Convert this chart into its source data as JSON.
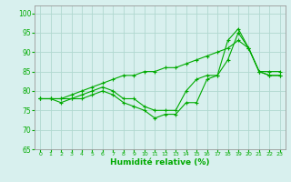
{
  "x": [
    0,
    1,
    2,
    3,
    4,
    5,
    6,
    7,
    8,
    9,
    10,
    11,
    12,
    13,
    14,
    15,
    16,
    17,
    18,
    19,
    20,
    21,
    22,
    23
  ],
  "line1": [
    78,
    78,
    77,
    78,
    78,
    79,
    80,
    79,
    77,
    76,
    75,
    73,
    74,
    74,
    77,
    77,
    83,
    84,
    88,
    95,
    91,
    85,
    84,
    84
  ],
  "line2": [
    78,
    78,
    78,
    78,
    79,
    80,
    81,
    80,
    78,
    78,
    76,
    75,
    75,
    75,
    80,
    83,
    84,
    84,
    93,
    96,
    91,
    85,
    84,
    84
  ],
  "line3": [
    78,
    78,
    78,
    79,
    80,
    81,
    82,
    83,
    84,
    84,
    85,
    85,
    86,
    86,
    87,
    88,
    89,
    90,
    91,
    93,
    91,
    85,
    85,
    85
  ],
  "bg_color": "#d8f0ee",
  "grid_color": "#b0d8d0",
  "line_color": "#00aa00",
  "xlabel": "Humidité relative (%)",
  "ylim": [
    65,
    102
  ],
  "xlim": [
    -0.5,
    23.5
  ],
  "yticks": [
    65,
    70,
    75,
    80,
    85,
    90,
    95,
    100
  ],
  "xticks": [
    0,
    1,
    2,
    3,
    4,
    5,
    6,
    7,
    8,
    9,
    10,
    11,
    12,
    13,
    14,
    15,
    16,
    17,
    18,
    19,
    20,
    21,
    22,
    23
  ],
  "xtick_labels": [
    "0",
    "1",
    "2",
    "3",
    "4",
    "5",
    "6",
    "7",
    "8",
    "9",
    "10",
    "11",
    "12",
    "13",
    "14",
    "15",
    "16",
    "17",
    "18",
    "19",
    "20",
    "21",
    "22",
    "23"
  ]
}
